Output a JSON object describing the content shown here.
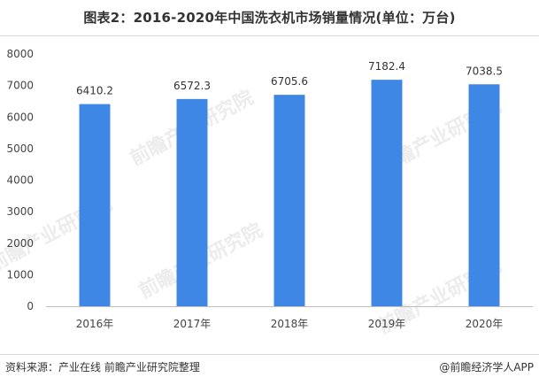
{
  "header": {
    "title": "图表2：2016-2020年中国洗衣机市场销量情况(单位：万台)"
  },
  "footer": {
    "source": "资料来源：产业在线 前瞻产业研究院整理",
    "credit": "@前瞻经济学人APP"
  },
  "watermark": {
    "text": "前瞻产业研究院"
  },
  "colors": {
    "bar": "#3f87e4",
    "axis": "#bfbfbf"
  },
  "chart_data": {
    "type": "bar",
    "title": "图表2：2016-2020年中国洗衣机市场销量情况(单位：万台)",
    "categories": [
      "2016年",
      "2017年",
      "2018年",
      "2019年",
      "2020年"
    ],
    "values": [
      6410.2,
      6572.3,
      6705.6,
      7182.4,
      7038.5
    ],
    "data_labels": [
      "6410.2",
      "6572.3",
      "6705.6",
      "7182.4",
      "7038.5"
    ],
    "yticks": [
      "0",
      "1000",
      "2000",
      "3000",
      "4000",
      "5000",
      "6000",
      "7000",
      "8000"
    ],
    "ylim": [
      0,
      8000
    ],
    "xlabel": "",
    "ylabel": "",
    "grid": false,
    "legend": "none"
  }
}
